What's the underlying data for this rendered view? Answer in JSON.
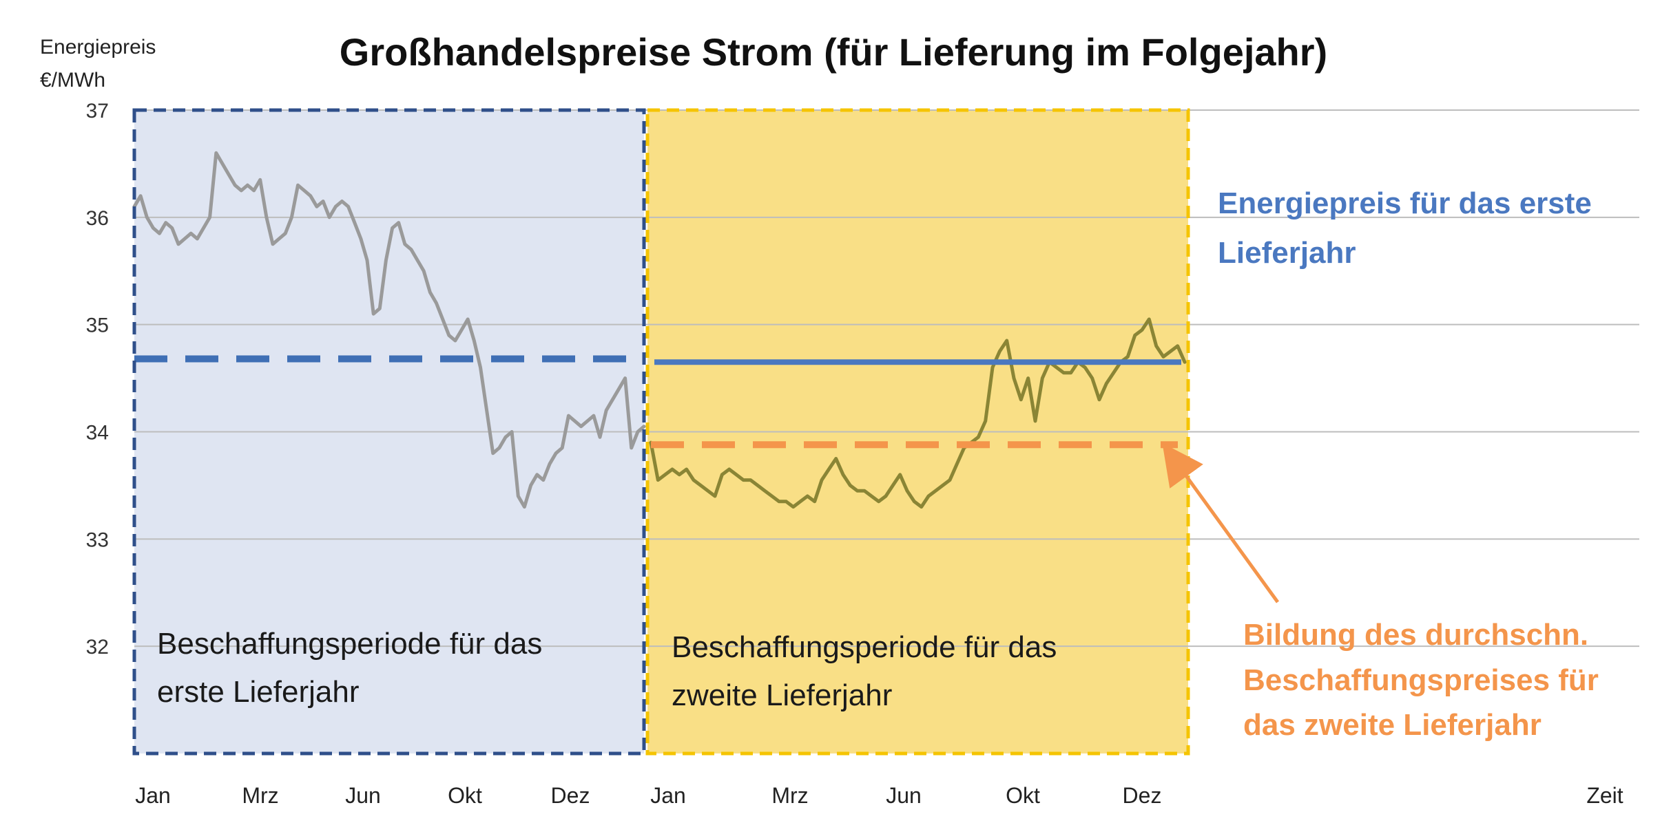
{
  "chart_data": {
    "type": "line",
    "title": "Großhandelspreise Strom (für Lieferung im Folgejahr)",
    "ylabel_lines": [
      "Energiepreis",
      "€/MWh"
    ],
    "xlabel": "Zeit",
    "ylim": [
      31,
      37
    ],
    "yticks": [
      32,
      33,
      34,
      35,
      36,
      37
    ],
    "x_tick_labels": [
      "Jan",
      "Mrz",
      "Jun",
      "Okt",
      "Dez",
      "Jan",
      "Mrz",
      "Jun",
      "Okt",
      "Dez"
    ],
    "grid": true,
    "series": [
      {
        "values": [
          36.1,
          36.2,
          36.0,
          35.9,
          35.85,
          35.95,
          35.9,
          35.75,
          35.8,
          35.85,
          35.8,
          35.9,
          36.0,
          36.6,
          36.5,
          36.4,
          36.3,
          36.25,
          36.3,
          36.25,
          36.35,
          36.0,
          35.75,
          35.8,
          35.85,
          36.0,
          36.3,
          36.25,
          36.2,
          36.1,
          36.15,
          36.0,
          36.1,
          36.15,
          36.1,
          35.95,
          35.8,
          35.6,
          35.1,
          35.15,
          35.6,
          35.9,
          35.95,
          35.75,
          35.7,
          35.6,
          35.5,
          35.3,
          35.2,
          35.05,
          34.9,
          34.85,
          34.95,
          35.05,
          34.85,
          34.6,
          34.2,
          33.8,
          33.85,
          33.95,
          34.0,
          33.4,
          33.3,
          33.5,
          33.6,
          33.55,
          33.7,
          33.8,
          33.85,
          34.15,
          34.1,
          34.05,
          34.1,
          34.15,
          33.95,
          34.2,
          34.3,
          34.4,
          34.5,
          33.85,
          34.0,
          34.05
        ],
        "color": "#9a9a9a"
      },
      {
        "values": [
          33.9,
          33.55,
          33.6,
          33.65,
          33.6,
          33.65,
          33.55,
          33.5,
          33.45,
          33.4,
          33.6,
          33.65,
          33.6,
          33.55,
          33.55,
          33.5,
          33.45,
          33.4,
          33.35,
          33.35,
          33.3,
          33.35,
          33.4,
          33.35,
          33.55,
          33.65,
          33.75,
          33.6,
          33.5,
          33.45,
          33.45,
          33.4,
          33.35,
          33.4,
          33.5,
          33.6,
          33.45,
          33.35,
          33.3,
          33.4,
          33.45,
          33.5,
          33.55,
          33.7,
          33.85,
          33.9,
          33.95,
          34.1,
          34.6,
          34.75,
          34.85,
          34.5,
          34.3,
          34.5,
          34.1,
          34.5,
          34.65,
          34.6,
          34.55,
          34.55,
          34.65,
          34.6,
          34.5,
          34.3,
          34.45,
          34.55,
          34.65,
          34.7,
          34.9,
          34.95,
          35.05,
          34.8,
          34.7,
          34.75,
          34.8,
          34.65
        ],
        "color": "#8a8535"
      }
    ],
    "reference_lines": [
      {
        "value": 34.68,
        "style": "dashed",
        "color": "#3f6fb5"
      },
      {
        "value": 34.65,
        "style": "solid",
        "color": "#4a78c0"
      },
      {
        "value": 33.88,
        "style": "dashed",
        "color": "#f4954b"
      }
    ],
    "regions": [
      {
        "label_lines": [
          "Beschaffungsperiode für das",
          "erste Lieferjahr"
        ],
        "fill": "#dfe5f2",
        "border": "#2f4f8a"
      },
      {
        "label_lines": [
          "Beschaffungsperiode für das",
          "zweite Lieferjahr"
        ],
        "fill": "#f9df86",
        "border": "#f5c400"
      }
    ],
    "annotations": [
      {
        "lines": [
          "Energiepreis für das erste",
          "Lieferjahr"
        ],
        "color": "#4a78c0"
      },
      {
        "lines": [
          "Bildung des durchschn.",
          "Beschaffungspreises für",
          "das zweite Lieferjahr"
        ],
        "color": "#f4954b"
      }
    ]
  }
}
